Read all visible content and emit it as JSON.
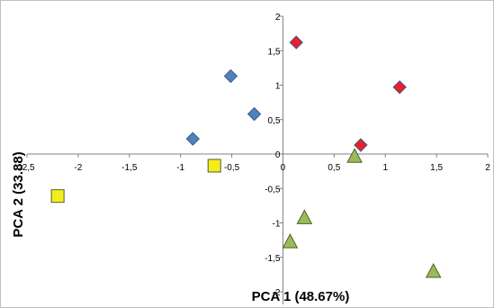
{
  "chart_data": {
    "type": "scatter",
    "title": "",
    "xlabel": "PCA 1 (48.67%)",
    "ylabel": "PCA 2 (33.88)",
    "xlim": [
      -2.5,
      2
    ],
    "ylim": [
      -2,
      2
    ],
    "x_ticks": [
      -2.5,
      -2,
      -1.5,
      -1,
      -0.5,
      0,
      0.5,
      1,
      1.5,
      2
    ],
    "y_ticks": [
      -2,
      -1.5,
      -1,
      -0.5,
      0,
      0.5,
      1,
      1.5,
      2
    ],
    "x_tick_labels": [
      "-2,5",
      "-2",
      "-1,5",
      "-1",
      "-0,5",
      "0",
      "0,5",
      "1",
      "1,5",
      "2"
    ],
    "y_tick_labels": [
      "-2",
      "-1,5",
      "-1",
      "-0,5",
      "0",
      "0,5",
      "1",
      "1,5",
      "2"
    ],
    "grid": false,
    "legend": "none",
    "series": [
      {
        "marker": "diamond",
        "color": "#4f81bd",
        "points": [
          [
            -0.51,
            1.13
          ],
          [
            -0.28,
            0.58
          ],
          [
            -0.88,
            0.22
          ]
        ]
      },
      {
        "marker": "diamond",
        "color": "#e8202a",
        "points": [
          [
            0.13,
            1.62
          ],
          [
            1.14,
            0.97
          ],
          [
            0.76,
            0.13
          ]
        ]
      },
      {
        "marker": "triangle",
        "color": "#9bbb59",
        "points": [
          [
            0.7,
            -0.03
          ],
          [
            0.21,
            -0.92
          ],
          [
            0.07,
            -1.27
          ],
          [
            1.47,
            -1.7
          ]
        ]
      },
      {
        "marker": "square",
        "color": "#f5ec1d",
        "points": [
          [
            -2.2,
            -0.61
          ],
          [
            -0.67,
            -0.17
          ]
        ]
      }
    ]
  }
}
